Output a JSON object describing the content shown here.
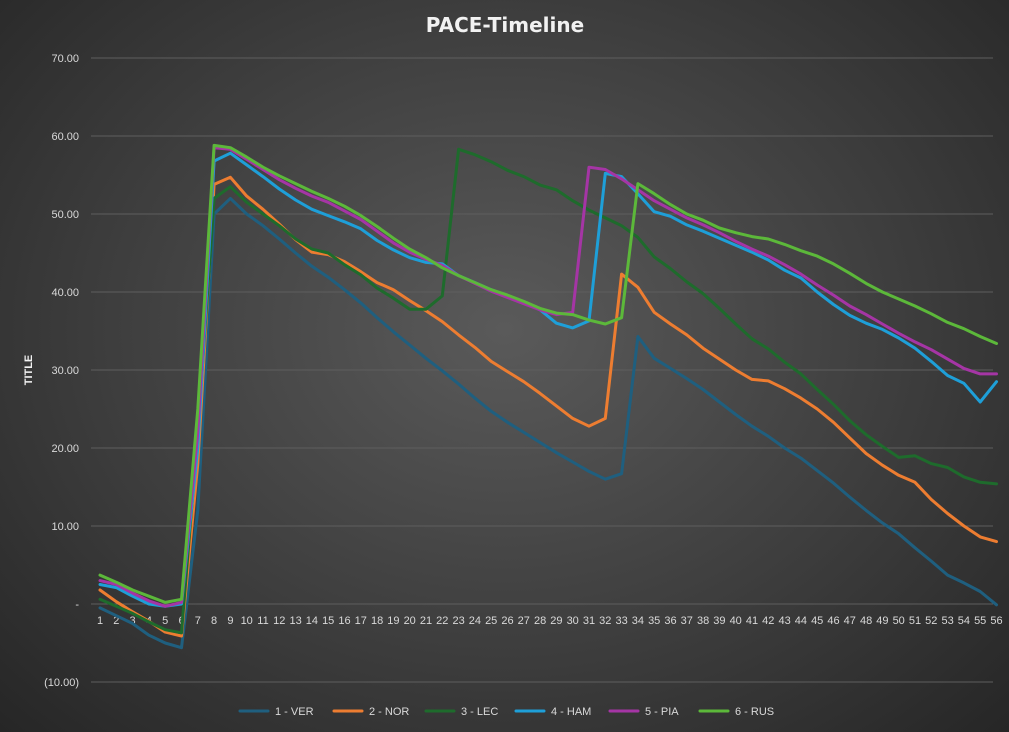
{
  "chart_data": {
    "type": "line",
    "title": "PACE-Timeline",
    "xlabel": "",
    "ylabel": "TITLE",
    "ylim": [
      -10,
      70
    ],
    "yticks": [
      70,
      60,
      50,
      40,
      30,
      20,
      10,
      0,
      -10
    ],
    "ytick_labels": [
      "70.00",
      "60.00",
      "50.00",
      "40.00",
      "30.00",
      "20.00",
      "10.00",
      "-",
      "(10.00)"
    ],
    "x": [
      1,
      2,
      3,
      4,
      5,
      6,
      7,
      8,
      9,
      10,
      11,
      12,
      13,
      14,
      15,
      16,
      17,
      18,
      19,
      20,
      21,
      22,
      23,
      24,
      25,
      26,
      27,
      28,
      29,
      30,
      31,
      32,
      33,
      34,
      35,
      36,
      37,
      38,
      39,
      40,
      41,
      42,
      43,
      44,
      45,
      46,
      47,
      48,
      49,
      50,
      51,
      52,
      53,
      54,
      55,
      56
    ],
    "grid": true,
    "legend_position": "bottom",
    "series": [
      {
        "name": "1 - VER",
        "color": "#1f5f7f",
        "values": [
          -0.5,
          -1.5,
          -2.5,
          -4.0,
          -5.0,
          -5.6,
          12.0,
          50.0,
          52.0,
          50.0,
          48.5,
          46.8,
          45.0,
          43.3,
          41.9,
          40.3,
          38.6,
          36.7,
          34.9,
          33.2,
          31.5,
          29.9,
          28.2,
          26.4,
          24.7,
          23.3,
          22.0,
          20.7,
          19.4,
          18.2,
          17.0,
          16.0,
          16.7,
          34.3,
          31.5,
          30.2,
          28.9,
          27.5,
          25.9,
          24.3,
          22.8,
          21.5,
          20.0,
          18.7,
          17.1,
          15.5,
          13.7,
          12.0,
          10.4,
          9.0,
          7.2,
          5.5,
          3.7,
          2.7,
          1.6,
          -0.1
        ]
      },
      {
        "name": "2 - NOR",
        "color": "#ed7d31",
        "values": [
          1.8,
          0.3,
          -1.0,
          -2.2,
          -3.6,
          -4.1,
          18.0,
          53.8,
          54.7,
          52.3,
          50.6,
          48.7,
          46.7,
          45.1,
          44.8,
          43.9,
          42.6,
          41.2,
          40.3,
          38.9,
          37.6,
          36.2,
          34.5,
          32.9,
          31.1,
          29.8,
          28.5,
          27.0,
          25.4,
          23.8,
          22.8,
          23.8,
          42.3,
          40.6,
          37.4,
          35.9,
          34.5,
          32.8,
          31.4,
          30.0,
          28.8,
          28.6,
          27.6,
          26.4,
          25.0,
          23.3,
          21.3,
          19.3,
          17.8,
          16.5,
          15.6,
          13.4,
          11.6,
          10.0,
          8.6,
          8.0
        ]
      },
      {
        "name": "3 - LEC",
        "color": "#1e6b2c",
        "values": [
          0.6,
          -0.3,
          -1.2,
          -2.3,
          -3.3,
          -3.7,
          22.0,
          52.0,
          53.5,
          51.5,
          50.0,
          48.5,
          46.8,
          45.5,
          45.0,
          43.5,
          42.2,
          40.5,
          39.2,
          37.8,
          37.8,
          39.5,
          58.3,
          57.6,
          56.7,
          55.6,
          54.8,
          53.7,
          53.1,
          51.7,
          50.5,
          49.5,
          48.5,
          47.0,
          44.5,
          43.0,
          41.3,
          39.8,
          37.9,
          35.9,
          34.0,
          32.7,
          31.0,
          29.5,
          27.5,
          25.6,
          23.5,
          21.7,
          20.2,
          18.8,
          19.0,
          18.0,
          17.5,
          16.3,
          15.6,
          15.4
        ]
      },
      {
        "name": "4 - HAM",
        "color": "#1e9fd8",
        "values": [
          2.5,
          2.1,
          1.0,
          0.0,
          -0.3,
          0.0,
          20.0,
          56.8,
          57.8,
          56.3,
          54.8,
          53.2,
          51.8,
          50.6,
          49.8,
          49.0,
          48.1,
          46.6,
          45.4,
          44.4,
          43.8,
          43.6,
          42.1,
          41.2,
          40.3,
          39.5,
          38.7,
          37.7,
          36.0,
          35.4,
          36.3,
          55.2,
          54.8,
          52.6,
          50.3,
          49.7,
          48.6,
          47.8,
          46.9,
          46.0,
          45.1,
          44.1,
          42.8,
          41.8,
          40.0,
          38.4,
          37.0,
          36.0,
          35.2,
          34.1,
          32.8,
          31.1,
          29.3,
          28.3,
          25.9,
          28.5
        ]
      },
      {
        "name": "5 - PIA",
        "color": "#a535a5",
        "values": [
          3.0,
          2.5,
          1.4,
          0.4,
          -0.3,
          0.2,
          22.0,
          58.5,
          58.3,
          57.0,
          55.7,
          54.4,
          53.3,
          52.3,
          51.5,
          50.4,
          49.3,
          47.8,
          46.3,
          45.1,
          44.2,
          43.4,
          42.1,
          41.1,
          40.1,
          39.3,
          38.5,
          37.7,
          37.1,
          37.4,
          56.0,
          55.7,
          54.5,
          53.1,
          51.7,
          50.6,
          49.5,
          48.6,
          47.6,
          46.5,
          45.5,
          44.6,
          43.5,
          42.3,
          40.9,
          39.6,
          38.2,
          37.1,
          35.9,
          34.7,
          33.6,
          32.6,
          31.4,
          30.2,
          29.5,
          29.5
        ]
      },
      {
        "name": "6 - RUS",
        "color": "#5cb83a",
        "values": [
          3.7,
          2.8,
          1.8,
          1.0,
          0.2,
          0.6,
          25.0,
          58.8,
          58.5,
          57.3,
          56.0,
          54.9,
          53.9,
          52.9,
          52.0,
          51.0,
          49.8,
          48.4,
          46.9,
          45.5,
          44.4,
          43.1,
          42.1,
          41.2,
          40.3,
          39.6,
          38.8,
          37.9,
          37.3,
          37.1,
          36.4,
          35.9,
          36.7,
          53.9,
          52.6,
          51.2,
          50.0,
          49.2,
          48.2,
          47.6,
          47.1,
          46.8,
          46.1,
          45.3,
          44.6,
          43.6,
          42.4,
          41.1,
          40.0,
          39.1,
          38.2,
          37.2,
          36.1,
          35.3,
          34.3,
          33.4
        ]
      }
    ]
  }
}
